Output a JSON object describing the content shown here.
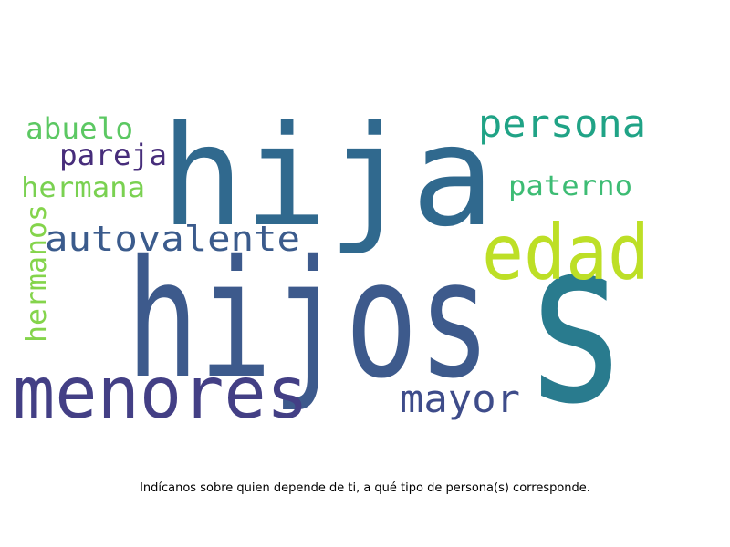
{
  "caption": "Indícanos sobre quien depende de ti, a qué tipo de persona(s) corresponde.",
  "words": [
    {
      "id": "hija",
      "text": "hija",
      "color": "#30698e"
    },
    {
      "id": "hijos",
      "text": "hijos",
      "color": "#3d5a8c"
    },
    {
      "id": "s",
      "text": "s",
      "color": "#297b8e"
    },
    {
      "id": "edad",
      "text": "edad",
      "color": "#bddf26"
    },
    {
      "id": "menores",
      "text": "menores",
      "color": "#433f85"
    },
    {
      "id": "persona",
      "text": "persona",
      "color": "#20a386"
    },
    {
      "id": "autovalente",
      "text": "autovalente",
      "color": "#3b5b8c"
    },
    {
      "id": "mayor",
      "text": "mayor",
      "color": "#3e4c8a"
    },
    {
      "id": "abuelo",
      "text": "abuelo",
      "color": "#5cc863"
    },
    {
      "id": "pareja",
      "text": "pareja",
      "color": "#472d7b"
    },
    {
      "id": "hermana",
      "text": "hermana",
      "color": "#7ad151"
    },
    {
      "id": "paterno",
      "text": "paterno",
      "color": "#3dbc74"
    },
    {
      "id": "hermanos",
      "text": "hermanos",
      "color": "#84d44b"
    }
  ]
}
